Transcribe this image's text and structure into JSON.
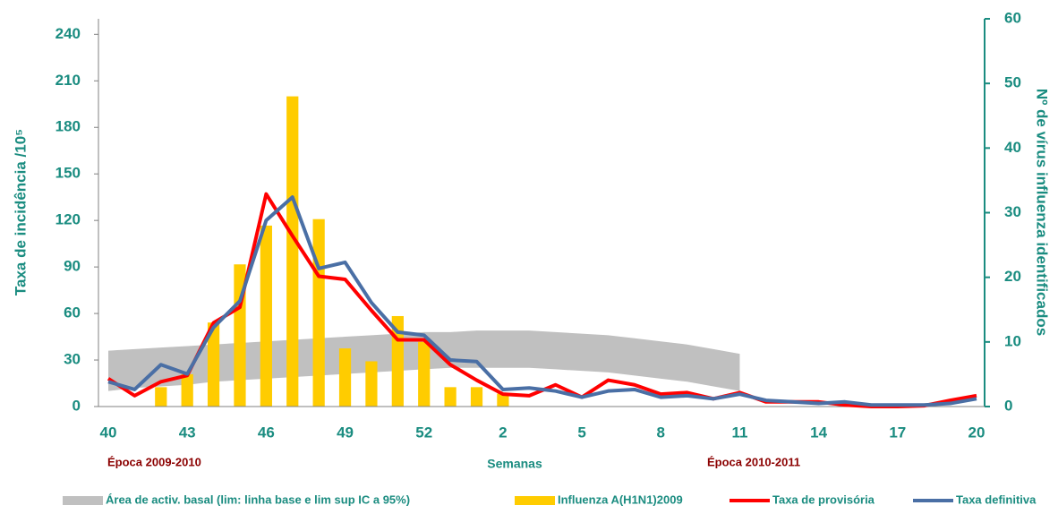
{
  "chart_data": {
    "type": "combo",
    "y_label": "Taxa de incidência /10⁵",
    "y2_label": "Nº de vírus influenza identificados",
    "x_label": "Semanas",
    "annotations": [
      "Época 2009-2010",
      "Época 2010-2011"
    ],
    "annotation_color": "#8b0000",
    "axis_color": "#1a8c80",
    "categories": [
      "40",
      null,
      null,
      "43",
      null,
      null,
      "46",
      null,
      null,
      "49",
      null,
      null,
      "52",
      null,
      null,
      "2",
      null,
      null,
      "5",
      null,
      null,
      "8",
      null,
      null,
      "11",
      null,
      null,
      "14",
      null,
      null,
      "17",
      null,
      null,
      "20"
    ],
    "ylim": [
      0,
      250
    ],
    "yticks": [
      0,
      30,
      60,
      90,
      120,
      150,
      180,
      210,
      240
    ],
    "y2lim": [
      0,
      60
    ],
    "y2ticks": [
      0,
      10,
      20,
      30,
      40,
      50,
      60
    ],
    "series": [
      {
        "name": "Área de activ. basal (lim: linha base e lim sup IC a 95%)",
        "type": "band",
        "color": "#c0c0c0",
        "lower": [
          10,
          12,
          13,
          14,
          16,
          17,
          18,
          19,
          20,
          21,
          22,
          23,
          24,
          25,
          25,
          25,
          25,
          24,
          23,
          22,
          20,
          18,
          16,
          13,
          10,
          null,
          null,
          null,
          null,
          null,
          null,
          null,
          null,
          null
        ],
        "upper": [
          36,
          37,
          38,
          39,
          40,
          41,
          42,
          43,
          44,
          45,
          46,
          47,
          48,
          48,
          49,
          49,
          49,
          48,
          47,
          46,
          44,
          42,
          40,
          37,
          34,
          null,
          null,
          null,
          null,
          null,
          null,
          null,
          null,
          null
        ]
      },
      {
        "name": "Influenza A(H1N1)2009",
        "type": "bar",
        "axis": "y2",
        "color": "#ffcc00",
        "values": [
          null,
          null,
          3,
          5,
          13,
          22,
          28,
          48,
          29,
          9,
          7,
          14,
          10,
          3,
          3,
          2,
          null,
          null,
          null,
          null,
          null,
          null,
          null,
          null,
          null,
          null,
          null,
          null,
          null,
          null,
          null,
          null,
          null,
          null
        ]
      },
      {
        "name": "Taxa de provisória",
        "type": "line",
        "color": "#ff0000",
        "values": [
          18,
          7,
          16,
          20,
          54,
          64,
          137,
          110,
          84,
          82,
          62,
          43,
          43,
          27,
          17,
          8,
          7,
          14,
          6,
          17,
          14,
          8,
          9,
          5,
          9,
          3,
          3,
          3,
          1,
          0,
          0,
          0.5,
          4,
          7
        ]
      },
      {
        "name": "Taxa definitiva",
        "type": "line",
        "color": "#4a6fa5",
        "values": [
          16,
          11,
          27,
          21,
          51,
          68,
          120,
          135,
          89,
          93,
          67,
          48,
          46,
          30,
          29,
          11,
          12,
          10,
          6,
          10,
          11,
          6,
          7,
          5,
          8,
          4,
          3,
          2,
          3,
          1,
          1,
          1,
          2,
          5
        ]
      }
    ]
  }
}
